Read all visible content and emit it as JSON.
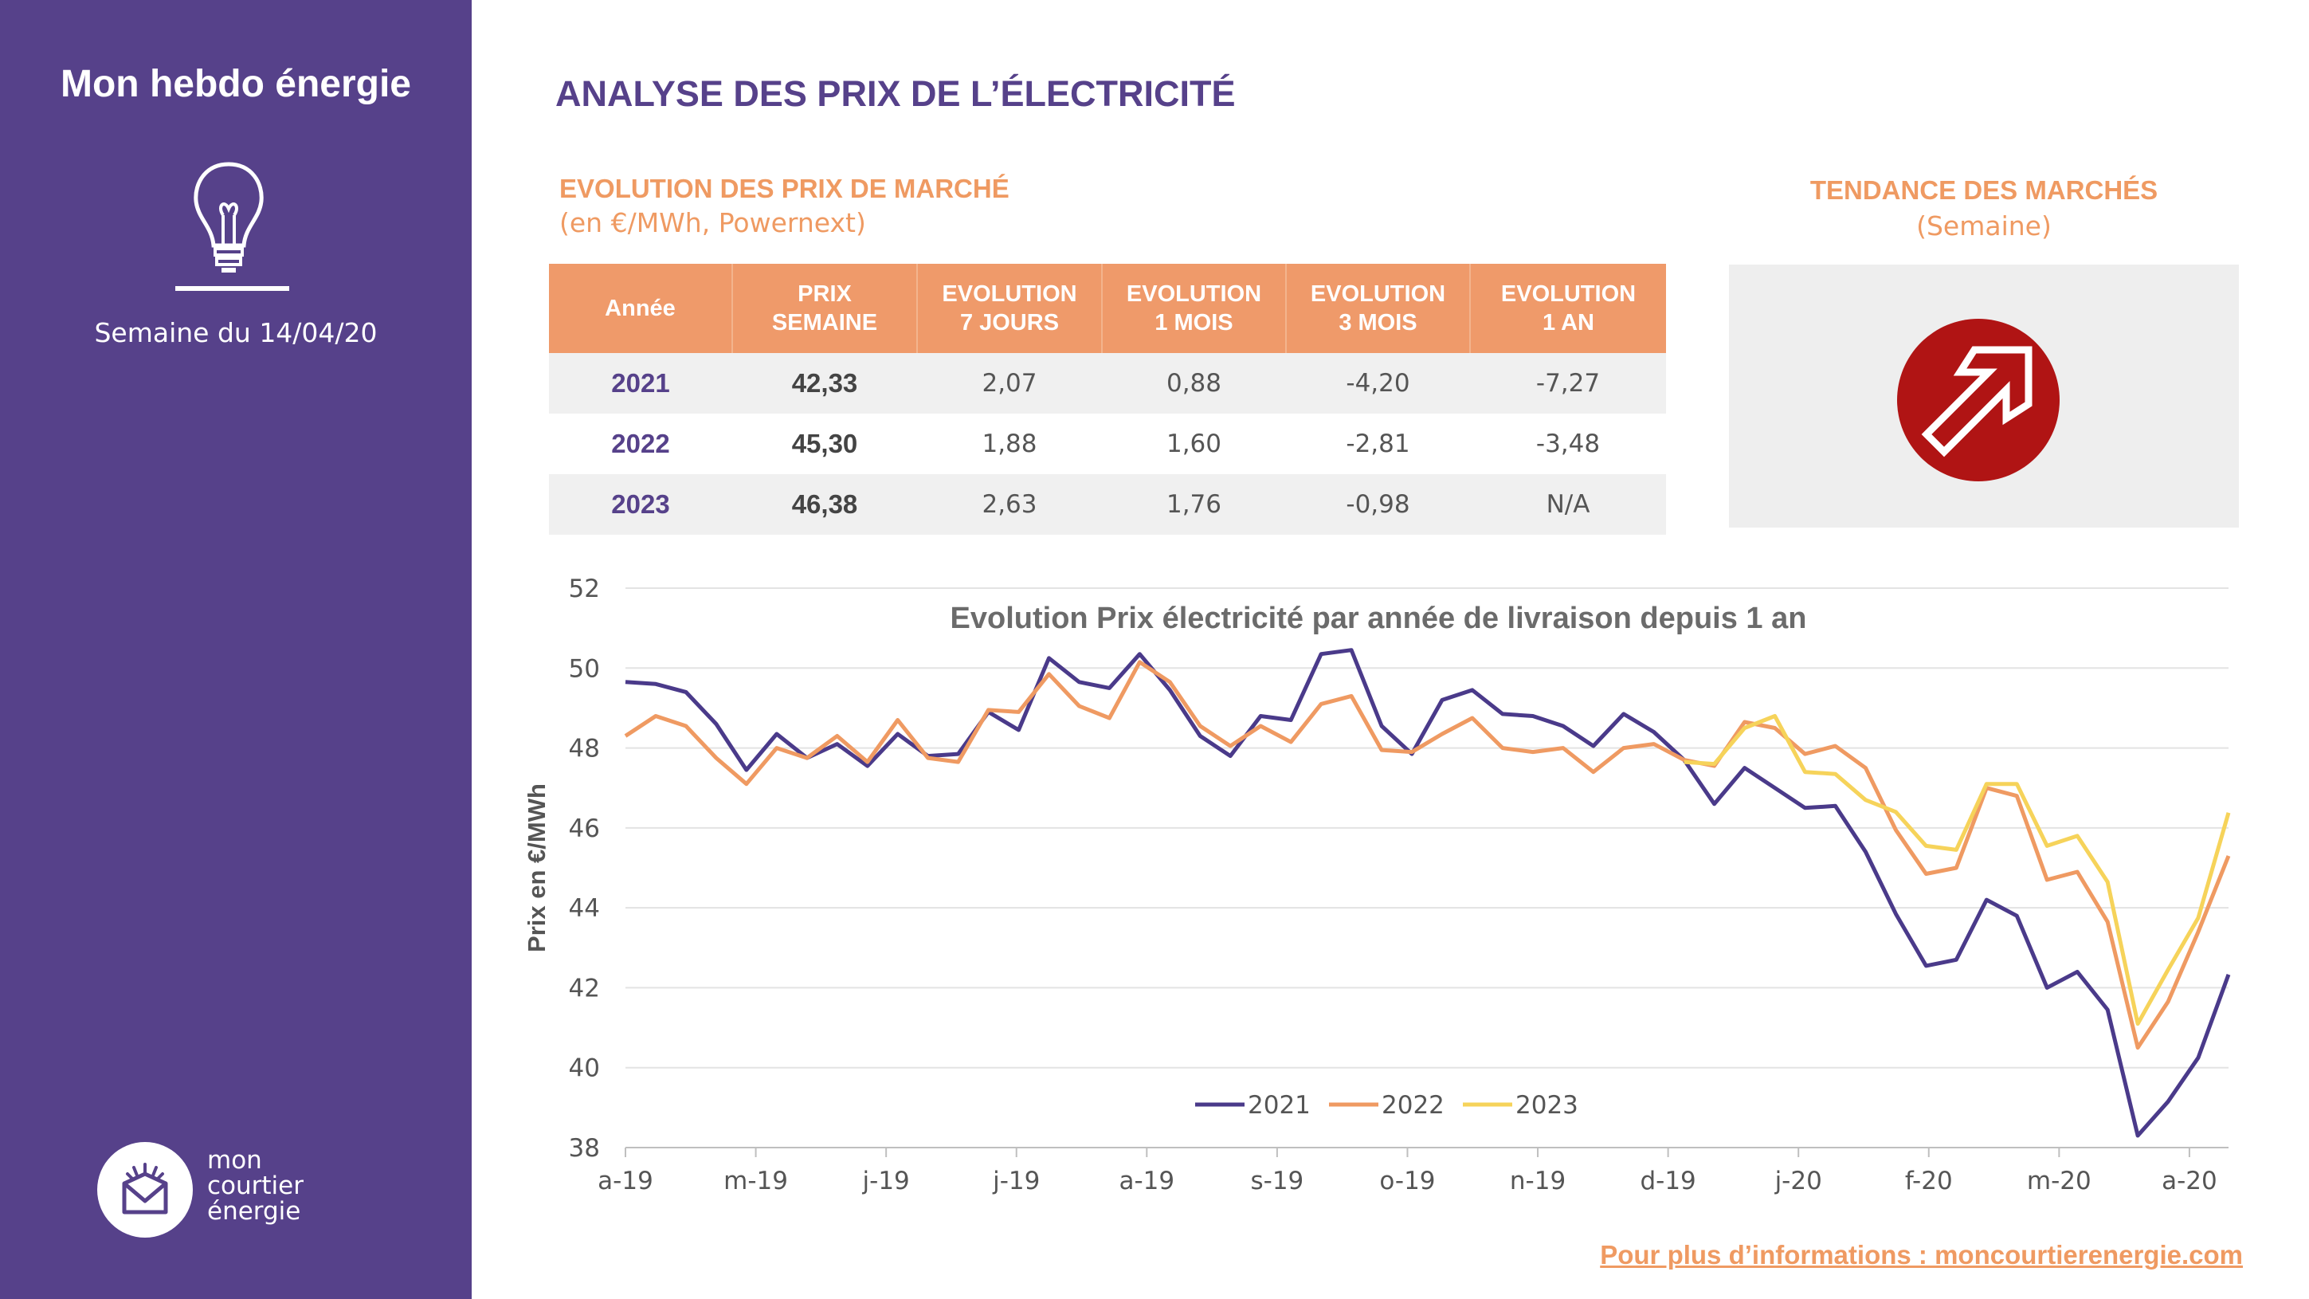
{
  "sidebar": {
    "title": "Mon hebdo énergie",
    "week": "Semaine du 14/04/20",
    "logo_lines": [
      "mon",
      "courtier",
      "énergie"
    ]
  },
  "main_title": "ANALYSE DES PRIX DE L’ÉLECTRICITÉ",
  "prices_section": {
    "title": "EVOLUTION DES PRIX DE MARCHÉ",
    "subtitle": "(en €/MWh, Powernext)"
  },
  "table": {
    "headers": [
      [
        "Année"
      ],
      [
        "PRIX",
        "SEMAINE"
      ],
      [
        "EVOLUTION",
        "7 JOURS"
      ],
      [
        "EVOLUTION",
        "1 MOIS"
      ],
      [
        "EVOLUTION",
        "3 MOIS"
      ],
      [
        "EVOLUTION",
        "1 AN"
      ]
    ],
    "rows": [
      [
        "2021",
        "42,33",
        "2,07",
        "0,88",
        "-4,20",
        "-7,27"
      ],
      [
        "2022",
        "45,30",
        "1,88",
        "1,60",
        "-2,81",
        "-3,48"
      ],
      [
        "2023",
        "46,38",
        "2,63",
        "1,76",
        "-0,98",
        "N/A"
      ]
    ]
  },
  "trend": {
    "title": "TENDANCE DES MARCHÉS",
    "subtitle": "(Semaine)",
    "icon": "up-right-arrow-icon",
    "icon_color": "#b01414"
  },
  "footer": {
    "link": "Pour plus d’informations : moncourtierenergie.com"
  },
  "colors": {
    "sidebar": "#56418a",
    "accent": "#ef9a62",
    "series_2021": "#4a3a8a",
    "series_2022": "#ef9a62",
    "series_2023": "#f6d35a"
  },
  "chart_data": {
    "type": "line",
    "title": "Evolution Prix électricité par année de livraison depuis 1 an",
    "ylabel": "Prix en €/MWh",
    "xlabel": "",
    "ylim": [
      38,
      52
    ],
    "yticks": [
      38,
      40,
      42,
      44,
      46,
      48,
      50,
      52
    ],
    "xtick_labels": [
      "a-19",
      "m-19",
      "j-19",
      "j-19",
      "a-19",
      "s-19",
      "o-19",
      "n-19",
      "d-19",
      "j-20",
      "f-20",
      "m-20",
      "a-20"
    ],
    "grid": true,
    "legend": "bottom-center",
    "series": [
      {
        "name": "2021",
        "color": "#4a3a8a",
        "values": [
          49.65,
          49.6,
          49.4,
          48.6,
          47.45,
          48.35,
          47.75,
          48.1,
          47.55,
          48.35,
          47.8,
          47.85,
          48.9,
          48.45,
          50.25,
          49.65,
          49.5,
          50.35,
          49.45,
          48.3,
          47.8,
          48.8,
          48.7,
          50.35,
          50.45,
          48.55,
          47.85,
          49.2,
          49.45,
          48.85,
          48.8,
          48.55,
          48.05,
          48.85,
          48.4,
          47.7,
          46.6,
          47.5,
          47.0,
          46.5,
          46.55,
          45.4,
          43.85,
          42.55,
          42.7,
          44.2,
          43.8,
          42.0,
          42.4,
          41.45,
          38.3,
          39.15,
          40.25,
          42.33
        ]
      },
      {
        "name": "2022",
        "color": "#ef9a62",
        "values": [
          48.3,
          48.8,
          48.55,
          47.75,
          47.1,
          48.0,
          47.75,
          48.3,
          47.65,
          48.7,
          47.75,
          47.65,
          48.95,
          48.9,
          49.85,
          49.05,
          48.75,
          50.15,
          49.65,
          48.55,
          48.05,
          48.55,
          48.15,
          49.1,
          49.3,
          47.95,
          47.9,
          48.35,
          48.75,
          48.0,
          47.9,
          48.0,
          47.4,
          48.0,
          48.1,
          47.7,
          47.55,
          48.65,
          48.5,
          47.85,
          48.05,
          47.5,
          45.95,
          44.85,
          45.0,
          47.0,
          46.8,
          44.7,
          44.9,
          43.65,
          40.5,
          41.65,
          43.4,
          45.3
        ]
      },
      {
        "name": "2023",
        "color": "#f6d35a",
        "values": [
          null,
          null,
          null,
          null,
          null,
          null,
          null,
          null,
          null,
          null,
          null,
          null,
          null,
          null,
          null,
          null,
          null,
          null,
          null,
          null,
          null,
          null,
          null,
          null,
          null,
          null,
          null,
          null,
          null,
          null,
          null,
          null,
          null,
          null,
          null,
          47.65,
          47.6,
          48.5,
          48.8,
          47.4,
          47.35,
          46.7,
          46.4,
          45.55,
          45.45,
          47.1,
          47.1,
          45.55,
          45.8,
          44.65,
          41.1,
          42.45,
          43.75,
          46.38
        ]
      }
    ]
  }
}
